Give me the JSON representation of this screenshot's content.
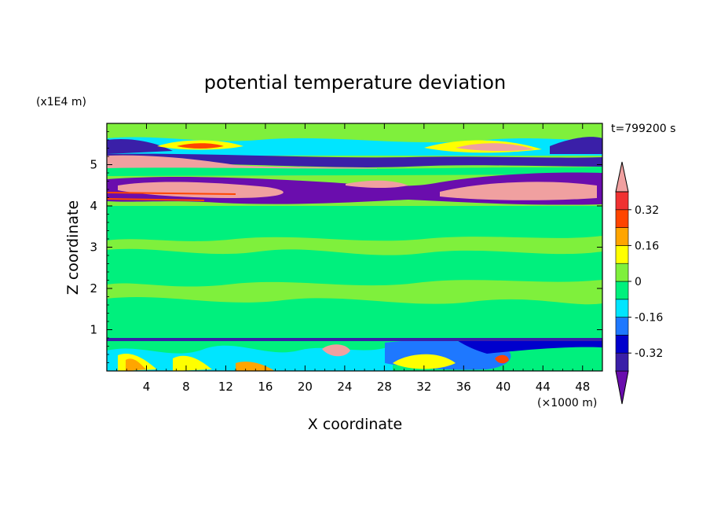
{
  "chart_data": {
    "type": "heatmap",
    "title": "potential temperature deviation",
    "xlabel": "X coordinate",
    "ylabel": "Z coordinate",
    "x_unit": "(×1000 m)",
    "y_unit": "(x1E4 m)",
    "time_label": "t=799200 s",
    "xlim": [
      0,
      50
    ],
    "ylim": [
      0,
      6
    ],
    "x_ticks": [
      4,
      8,
      12,
      16,
      20,
      24,
      28,
      32,
      36,
      40,
      44,
      48
    ],
    "y_ticks": [
      1,
      2,
      3,
      4,
      5
    ],
    "x_tick_labels": [
      "4",
      "8",
      "12",
      "16",
      "20",
      "24",
      "28",
      "32",
      "36",
      "40",
      "44",
      "48"
    ],
    "y_tick_labels": [
      "1",
      "2",
      "3",
      "4",
      "5"
    ],
    "colorbar": {
      "levels": [
        -0.4,
        -0.32,
        -0.24,
        -0.16,
        -0.08,
        0,
        0.08,
        0.16,
        0.24,
        0.32,
        0.4
      ],
      "colors": [
        "#6a0dad",
        "#3a1fa8",
        "#0000cd",
        "#1e78ff",
        "#00e5ff",
        "#00f07d",
        "#7ff03c",
        "#ffff00",
        "#ffa500",
        "#ff4500",
        "#f03232",
        "#f0a0a0"
      ],
      "tick_labels": [
        "0.32",
        "0.16",
        "0",
        "-0.16",
        "-0.32"
      ],
      "tick_values": [
        0.32,
        0.16,
        0,
        -0.16,
        -0.32
      ]
    },
    "grid": false
  }
}
